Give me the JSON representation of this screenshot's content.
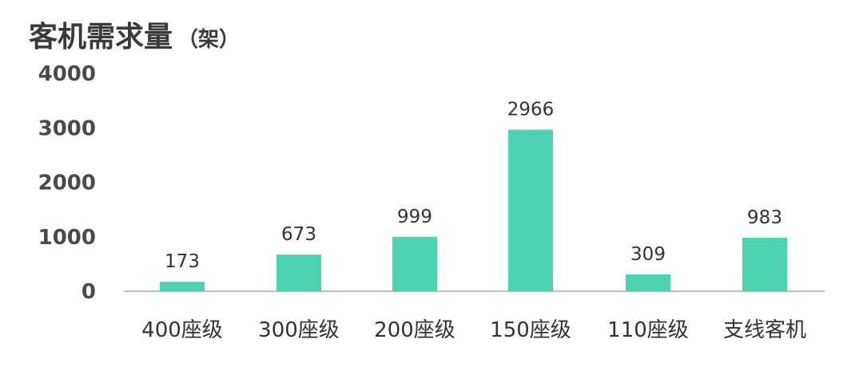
{
  "chart_data": {
    "type": "bar",
    "title": "客机需求量",
    "title_unit": "（架）",
    "categories": [
      "400座级",
      "300座级",
      "200座级",
      "150座级",
      "110座级",
      "支线客机"
    ],
    "values": [
      173,
      673,
      999,
      2966,
      309,
      983
    ],
    "data_labels": [
      "173",
      "673",
      "999",
      "2966",
      "309",
      "983"
    ],
    "ylim": [
      0,
      4000
    ],
    "yticks": [
      0,
      1000,
      2000,
      3000,
      4000
    ],
    "ytick_labels": [
      "0",
      "1000",
      "2000",
      "3000",
      "4000"
    ],
    "grid": false,
    "legend": "none",
    "bar_color": "#4fd2b0",
    "axis_color": "#bdbdbd"
  }
}
